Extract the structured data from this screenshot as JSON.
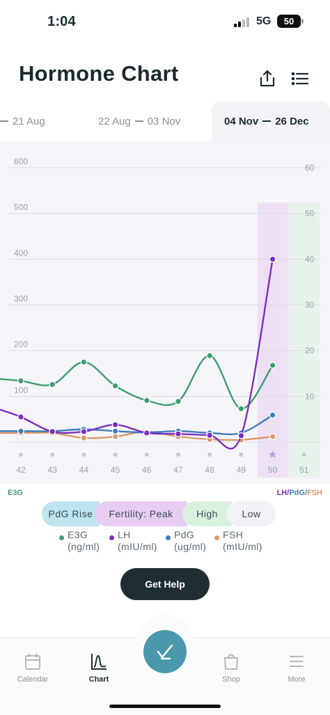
{
  "status_bar": {
    "time": "1:04",
    "network": "5G",
    "battery": "50"
  },
  "header": {
    "title": "Hormone Chart",
    "share_icon": "share-icon",
    "menu_icon": "list-menu-icon"
  },
  "range_tabs": [
    {
      "start": "",
      "end": "21 Aug",
      "active": false
    },
    {
      "start": "22 Aug",
      "end": "03 Nov",
      "active": false
    },
    {
      "start": "04 Nov",
      "end": "26 Dec",
      "active": true
    }
  ],
  "colors": {
    "e3g": "#3f9c72",
    "lh": "#7b2fbe",
    "pdg": "#3d7fb8",
    "fsh": "#d89a6a",
    "phase_pdg_rise": "#bfe4ef",
    "phase_fertility_peak": "#e6cdf1",
    "phase_high": "#d9f0df",
    "phase_low": "#f2f1f6"
  },
  "chart_data": {
    "type": "line",
    "x": [
      "42",
      "43",
      "44",
      "45",
      "46",
      "47",
      "48",
      "49",
      "50",
      "51"
    ],
    "left_axis": {
      "label": "E3G",
      "ticks": [
        "100",
        "200",
        "300",
        "400",
        "500",
        "600"
      ],
      "ylim": [
        0,
        600
      ]
    },
    "right_axis": {
      "label": "LH/PdG/FSH",
      "ticks": [
        "10",
        "20",
        "30",
        "40",
        "50",
        "60"
      ],
      "ylim": [
        0,
        60
      ]
    },
    "series": [
      {
        "name": "E3G",
        "axis": "left",
        "values": [
          134,
          126,
          175,
          123,
          91,
          89,
          189,
          73,
          168,
          null
        ]
      },
      {
        "name": "LH",
        "axis": "right",
        "values": [
          5.5,
          2.3,
          2.3,
          3.8,
          2.0,
          1.8,
          1.5,
          1.4,
          40,
          null
        ]
      },
      {
        "name": "PdG",
        "axis": "right",
        "values": [
          2.4,
          2.4,
          2.8,
          2.4,
          2.1,
          2.4,
          2.0,
          2.0,
          5.9,
          null
        ]
      },
      {
        "name": "FSH",
        "axis": "right",
        "values": [
          2.0,
          2.0,
          0.9,
          1.2,
          2.3,
          1.2,
          0.6,
          0.5,
          1.2,
          null
        ]
      }
    ],
    "phase_columns": [
      {
        "day": "50",
        "phase": "Fertility: Peak"
      },
      {
        "day": "51",
        "phase": "High"
      }
    ],
    "today_marker": "50",
    "grid": true
  },
  "phase_legend": [
    "PdG Rise",
    "Fertility: Peak",
    "High",
    "Low"
  ],
  "series_legend": [
    {
      "name": "E3G",
      "unit": "(ng/ml)"
    },
    {
      "name": "LH",
      "unit": "(mIU/ml)"
    },
    {
      "name": "PdG",
      "unit": "(ug/ml)"
    },
    {
      "name": "FSH",
      "unit": "(mIU/ml)"
    }
  ],
  "legend_axis": {
    "left": "E3G",
    "right_lh": "LH",
    "right_pdg": "PdG",
    "right_fsh": "FSH",
    "sep": "/"
  },
  "help_button": {
    "label": "Get Help"
  },
  "tab_bar": [
    {
      "label": "Calendar",
      "icon": "calendar-icon",
      "active": false
    },
    {
      "label": "Chart",
      "icon": "chart-icon",
      "active": true
    },
    {
      "label": "Shop",
      "icon": "shopping-bag-icon",
      "active": false
    },
    {
      "label": "More",
      "icon": "more-menu-icon",
      "active": false
    }
  ],
  "fab_icon": "test-check-icon"
}
